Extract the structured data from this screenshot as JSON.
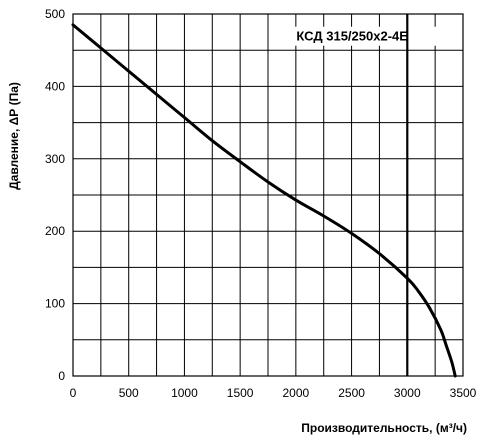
{
  "chart_data": {
    "type": "line",
    "title": "",
    "xlabel": "Производительность, (м³/ч)",
    "ylabel": "Давление, ΔР (Па)",
    "xlim": [
      0,
      3500
    ],
    "ylim": [
      0,
      500
    ],
    "x_ticks": [
      0,
      500,
      1000,
      1500,
      2000,
      2500,
      3000,
      3500
    ],
    "y_ticks": [
      0,
      100,
      200,
      300,
      400,
      500
    ],
    "x_gridlines": [
      0,
      250,
      500,
      750,
      1000,
      1250,
      1500,
      1750,
      2000,
      2250,
      2500,
      2750,
      3000,
      3250,
      3500
    ],
    "y_gridlines": [
      0,
      50,
      100,
      150,
      200,
      250,
      300,
      350,
      400,
      450,
      500
    ],
    "grid": true,
    "legend": "none",
    "series": [
      {
        "x": [
          0,
          250,
          500,
          750,
          1000,
          1250,
          1500,
          1750,
          2000,
          2250,
          2500,
          2750,
          3000,
          3100,
          3200,
          3300,
          3350,
          3400,
          3430
        ],
        "y": [
          485,
          453,
          421,
          389,
          357,
          325,
          296,
          268,
          243,
          221,
          197,
          169,
          135,
          117,
          94,
          64,
          42,
          19,
          0
        ]
      }
    ],
    "annotations": [
      {
        "text": "КСД 315/250х2-4Е",
        "x": 3010,
        "y": 470
      }
    ],
    "vertical_line_x": 3000
  }
}
